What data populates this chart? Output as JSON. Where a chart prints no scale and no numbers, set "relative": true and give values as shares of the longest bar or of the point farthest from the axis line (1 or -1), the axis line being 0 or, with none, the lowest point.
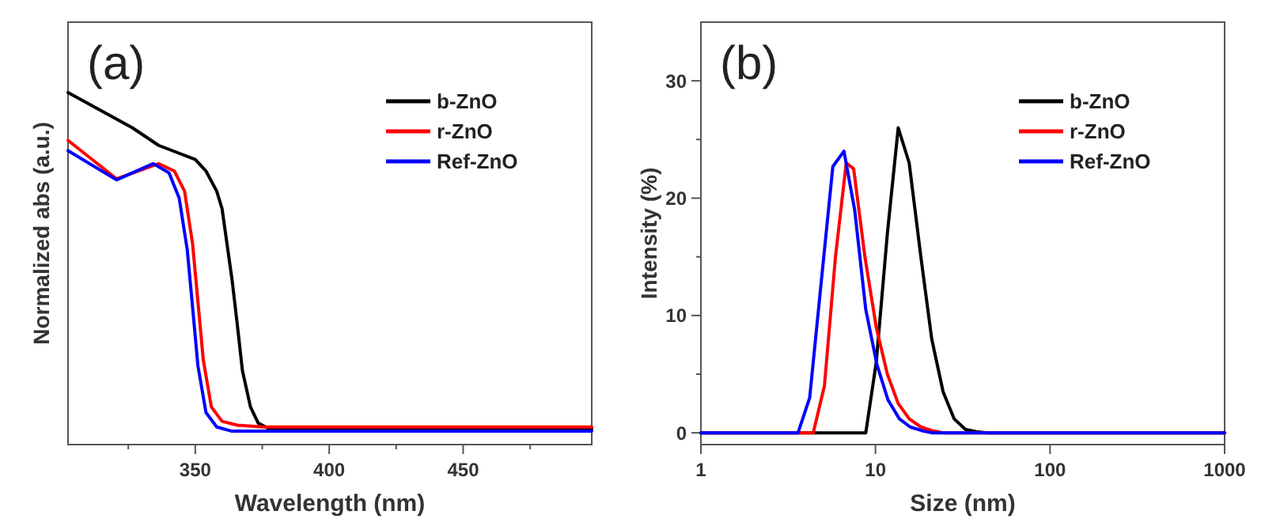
{
  "chart_data": [
    {
      "type": "line",
      "relative": true,
      "xlabel": "Wavelength (nm)",
      "ylabel": "Normalized abs (a.u.)",
      "annotations": [
        "(a)"
      ],
      "legend": "top right",
      "xlim": [
        302.5,
        498
      ],
      "xticks": [
        {
          "value": 325,
          "label": null
        },
        350,
        {
          "value": 375,
          "label": null
        },
        400,
        {
          "value": 425,
          "label": null
        },
        450,
        {
          "value": 475,
          "label": null
        }
      ],
      "series": [
        {
          "name": "b-ZnO",
          "color": "#000000",
          "x": [
            302.5,
            326.5,
            336.3,
            350,
            354,
            358,
            360,
            363.7,
            365.7,
            367.6,
            370.6,
            373.5,
            377.5,
            498
          ],
          "values": [
            1.0,
            0.9,
            0.85,
            0.81,
            0.777,
            0.72,
            0.67,
            0.47,
            0.34,
            0.21,
            0.107,
            0.061,
            0.045,
            0.045
          ]
        },
        {
          "name": "r-ZnO",
          "color": "#ff0000",
          "x": [
            302.5,
            320.6,
            336.3,
            342.2,
            346,
            349,
            351,
            353,
            356,
            360,
            365.7,
            375.5,
            498
          ],
          "values": [
            0.864,
            0.755,
            0.798,
            0.777,
            0.72,
            0.57,
            0.405,
            0.24,
            0.107,
            0.066,
            0.055,
            0.05,
            0.05
          ]
        },
        {
          "name": "Ref-ZnO",
          "color": "#0000ff",
          "x": [
            302.5,
            320.6,
            334.3,
            340.2,
            344,
            347,
            349,
            351,
            354,
            358,
            363.7,
            498
          ],
          "values": [
            0.835,
            0.752,
            0.798,
            0.772,
            0.7,
            0.554,
            0.39,
            0.223,
            0.091,
            0.05,
            0.038,
            0.038
          ]
        }
      ]
    },
    {
      "type": "line",
      "log": "x",
      "xlabel": "Size (nm)",
      "ylabel": "Intensity (%)",
      "annotations": [
        "(b)"
      ],
      "legend": "top right",
      "xlim": [
        1,
        1000
      ],
      "xticks": [
        1,
        10,
        100,
        1000
      ],
      "ylim": [
        -1,
        35
      ],
      "yticks": [
        0,
        {
          "value": 5,
          "label": null
        },
        10,
        {
          "value": 15,
          "label": null
        },
        20,
        {
          "value": 25,
          "label": null
        },
        30
      ],
      "series": [
        {
          "name": "b-ZnO",
          "color": "#000000",
          "x": [
            1,
            8.8,
            10.1,
            11.7,
            13.5,
            15.6,
            18.2,
            21,
            24.4,
            28.2,
            32.7,
            37.8,
            43.8,
            1000
          ],
          "values": [
            0,
            0,
            6,
            17,
            26,
            23,
            15,
            8,
            3.5,
            1.2,
            0.3,
            0.1,
            0,
            0
          ]
        },
        {
          "name": "r-ZnO",
          "color": "#ff0000",
          "x": [
            1,
            4.4,
            5.1,
            5.9,
            6.8,
            7.5,
            8.7,
            10.1,
            11.7,
            13.5,
            15.6,
            18.2,
            21,
            24.4,
            1000
          ],
          "values": [
            0,
            0,
            4,
            15,
            23,
            22.5,
            15,
            9,
            5,
            2.5,
            1.2,
            0.5,
            0.2,
            0,
            0
          ]
        },
        {
          "name": "Ref-ZnO",
          "color": "#0000ff",
          "x": [
            1,
            3.6,
            4.2,
            4.9,
            5.7,
            6.6,
            7.6,
            8.8,
            10.2,
            11.8,
            13.7,
            15.8,
            18.3,
            21,
            1000
          ],
          "values": [
            0,
            0,
            3,
            13,
            22.7,
            24,
            19,
            10.5,
            5.8,
            2.8,
            1.2,
            0.5,
            0.2,
            0,
            0
          ]
        }
      ]
    }
  ]
}
